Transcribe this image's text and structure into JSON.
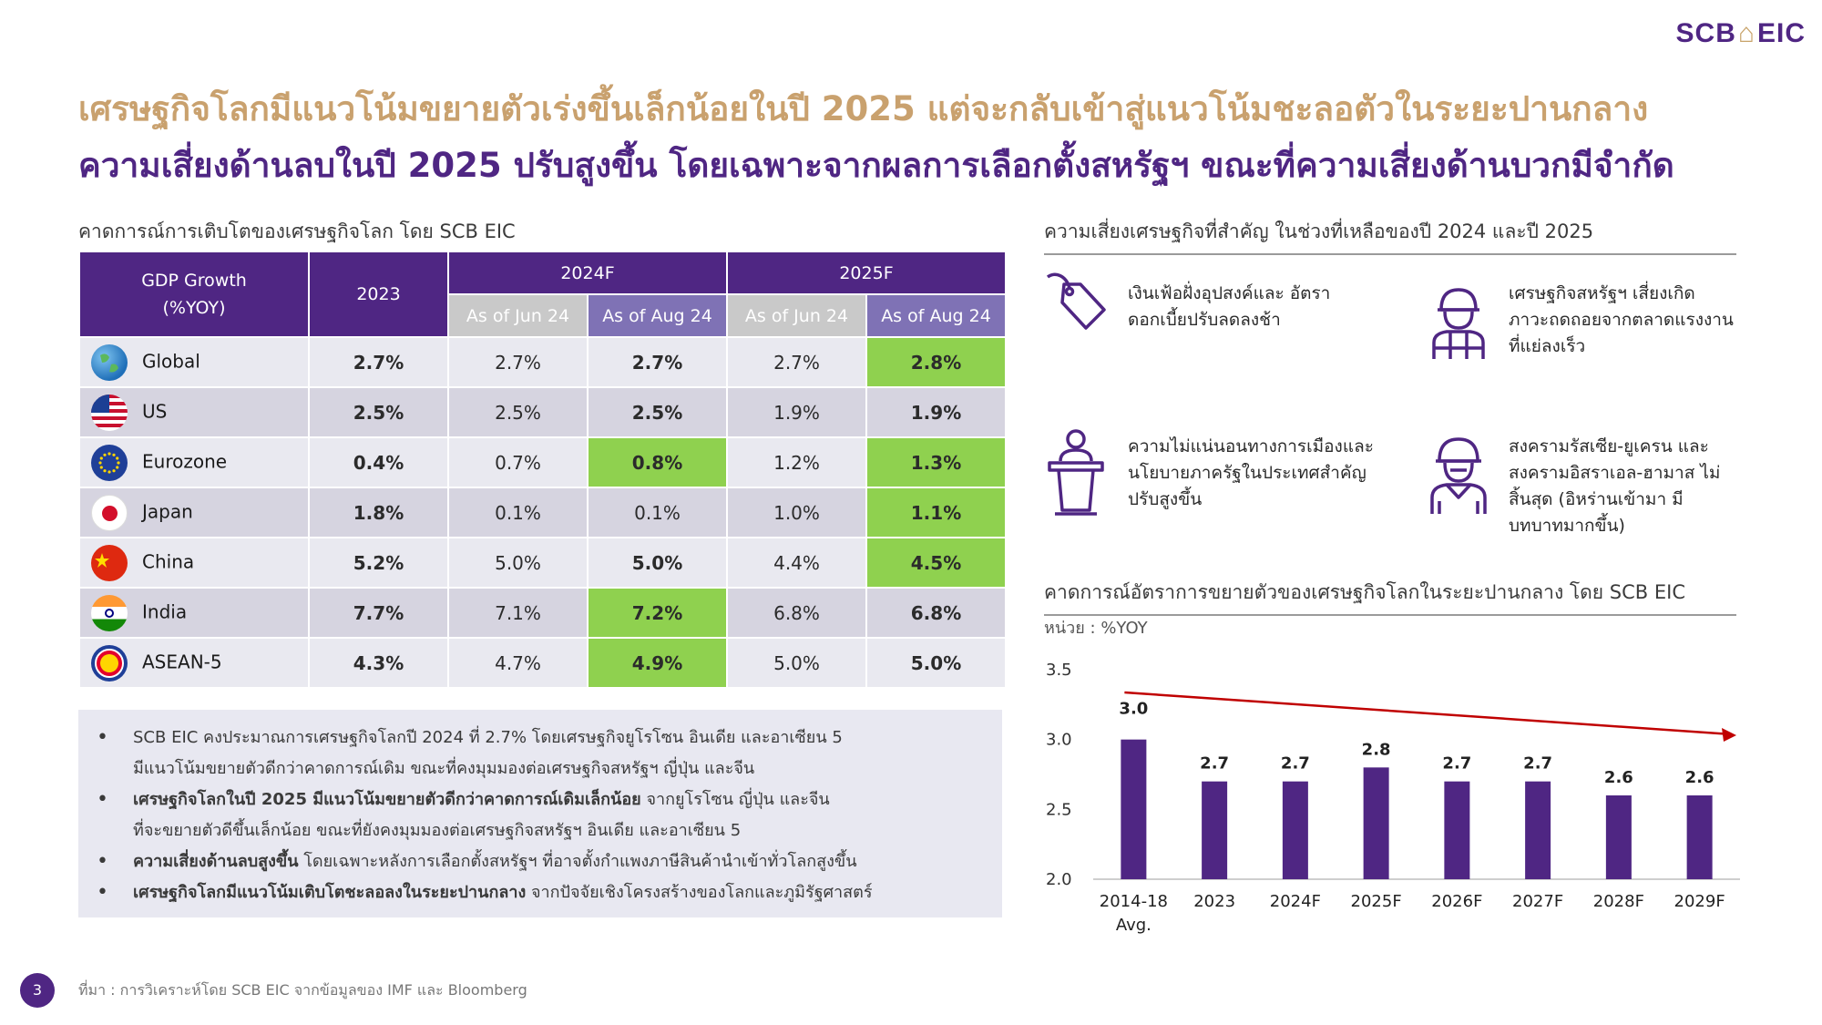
{
  "logo": {
    "left": "SCB",
    "right": "EIC"
  },
  "titles": {
    "line1": "เศรษฐกิจโลกมีแนวโน้มขยายตัวเร่งขึ้นเล็กน้อยในปี 2025 แต่จะกลับเข้าสู่แนวโน้มชะลอตัวในระยะปานกลาง",
    "line2": "ความเสี่ยงด้านลบในปี 2025 ปรับสูงขึ้น โดยเฉพาะจากผลการเลือกตั้งสหรัฐฯ ขณะที่ความเสี่ยงด้านบวกมีจำกัด"
  },
  "table_section": {
    "heading": "คาดการณ์การเติบโตของเศรษฐกิจโลก โดย SCB EIC",
    "header": {
      "gdp_line1": "GDP Growth",
      "gdp_line2": "(%YOY)",
      "y2023": "2023",
      "y2024": "2024F",
      "y2025": "2025F",
      "sub_jun": "As of Jun 24",
      "sub_aug": "As of Aug 24"
    },
    "rows": [
      {
        "region": "Global",
        "v2023": "2.7%",
        "j24": "2.7%",
        "a24": "2.7%",
        "j25": "2.7%",
        "a25": "2.8%"
      },
      {
        "region": "US",
        "v2023": "2.5%",
        "j24": "2.5%",
        "a24": "2.5%",
        "j25": "1.9%",
        "a25": "1.9%"
      },
      {
        "region": "Eurozone",
        "v2023": "0.4%",
        "j24": "0.7%",
        "a24": "0.8%",
        "j25": "1.2%",
        "a25": "1.3%"
      },
      {
        "region": "Japan",
        "v2023": "1.8%",
        "j24": "0.1%",
        "a24": "0.1%",
        "j25": "1.0%",
        "a25": "1.1%"
      },
      {
        "region": "China",
        "v2023": "5.2%",
        "j24": "5.0%",
        "a24": "5.0%",
        "j25": "4.4%",
        "a25": "4.5%"
      },
      {
        "region": "India",
        "v2023": "7.7%",
        "j24": "7.1%",
        "a24": "7.2%",
        "j25": "6.8%",
        "a25": "6.8%"
      },
      {
        "region": "ASEAN-5",
        "v2023": "4.3%",
        "j24": "4.7%",
        "a24": "4.9%",
        "j25": "5.0%",
        "a25": "5.0%"
      }
    ],
    "highlight_color": "#8fd14f"
  },
  "bullets": [
    {
      "bold": "",
      "text": "SCB EIC คงประมาณการเศรษฐกิจโลกปี 2024 ที่ 2.7% โดยเศรษฐกิจยูโรโซน อินเดีย และอาเซียน 5",
      "cont": "มีแนวโน้มขยายตัวดีกว่าคาดการณ์เดิม ขณะที่คงมุมมองต่อเศรษฐกิจสหรัฐฯ ญี่ปุ่น และจีน"
    },
    {
      "bold": "เศรษฐกิจโลกในปี 2025 มีแนวโน้มขยายตัวดีกว่าคาดการณ์เดิมเล็กน้อย",
      "text": " จากยูโรโซน ญี่ปุ่น และจีน",
      "cont": "ที่จะขยายตัวดีขึ้นเล็กน้อย ขณะที่ยังคงมุมมองต่อเศรษฐกิจสหรัฐฯ อินเดีย และอาเซียน 5"
    },
    {
      "bold": "ความเสี่ยงด้านลบสูงขึ้น",
      "text": " โดยเฉพาะหลังการเลือกตั้งสหรัฐฯ ที่อาจตั้งกำแพงภาษีสินค้านำเข้าทั่วโลกสูงขึ้น",
      "cont": ""
    },
    {
      "bold": "เศรษฐกิจโลกมีแนวโน้มเติบโตชะลอลงในระยะปานกลาง",
      "text": " จากปัจจัยเชิงโครงสร้างของโลกและภูมิรัฐศาสตร์",
      "cont": ""
    }
  ],
  "risks": {
    "heading": "ความเสี่ยงเศรษฐกิจที่สำคัญ ในช่วงที่เหลือของปี 2024 และปี 2025",
    "items": [
      {
        "icon": "price-tag-icon",
        "text": "เงินเฟ้อฝั่งอุปสงค์และ อัตราดอกเบี้ยปรับลดลงช้า"
      },
      {
        "icon": "worker-icon",
        "text": "เศรษฐกิจสหรัฐฯ เสี่ยงเกิด ภาวะถดถอยจากตลาดแรงงาน ที่แย่ลงเร็ว"
      },
      {
        "icon": "podium-icon",
        "text": "ความไม่แน่นอนทางการเมืองและ นโยบายภาครัฐในประเทศสำคัญ ปรับสูงขึ้น"
      },
      {
        "icon": "soldier-icon",
        "text": "สงครามรัสเซีย-ยูเครน และ สงครามอิสราเอล-ฮามาส ไม่สิ้นสุด (อิหร่านเข้ามา มีบทบาทมากขึ้น)"
      }
    ]
  },
  "chart_section": {
    "heading": "คาดการณ์อัตราการขยายตัวของเศรษฐกิจโลกในระยะปานกลาง โดย SCB EIC",
    "unit": "หน่วย : %YOY"
  },
  "chart_data": {
    "type": "bar",
    "categories": [
      "2014-18 Avg.",
      "2023",
      "2024F",
      "2025F",
      "2026F",
      "2027F",
      "2028F",
      "2029F"
    ],
    "values": [
      3.0,
      2.7,
      2.7,
      2.8,
      2.7,
      2.7,
      2.6,
      2.6
    ],
    "labels": [
      "3.0",
      "2.7",
      "2.7",
      "2.8",
      "2.7",
      "2.7",
      "2.6",
      "2.6"
    ],
    "yticks": [
      "3.5",
      "3.0",
      "2.5",
      "2.0"
    ],
    "ylim": [
      2.0,
      3.5
    ],
    "bar_color": "#4f2683",
    "trend": "declining",
    "trend_color": "#c00000",
    "grid": false
  },
  "footer": {
    "page": "3",
    "source": "ที่มา : การวิเคราะห์โดย SCB EIC จากข้อมูลของ IMF และ Bloomberg"
  }
}
